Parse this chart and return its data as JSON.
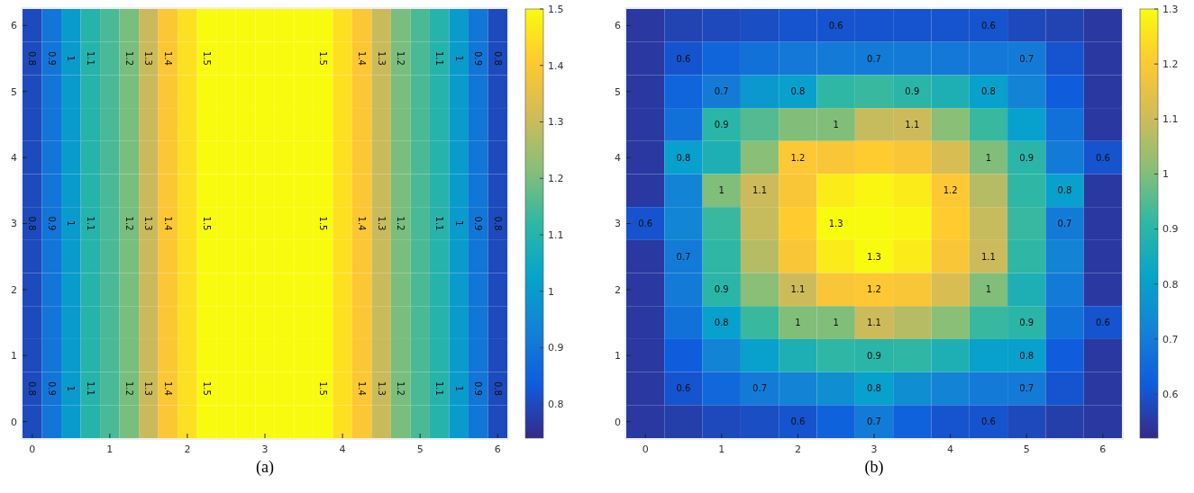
{
  "chart_data": [
    {
      "type": "heatmap",
      "categories": [
        "0",
        null,
        null,
        null,
        "1",
        null,
        null,
        null,
        "2",
        null,
        null,
        null,
        "3",
        null,
        null,
        null,
        "4",
        null,
        null,
        null,
        "5",
        null,
        null,
        null,
        "6"
      ],
      "y_categories": [
        "6",
        null,
        "5",
        null,
        "4",
        null,
        "3",
        null,
        "2",
        null,
        "1",
        null,
        "0"
      ],
      "cells": [
        [
          0.8,
          0.9,
          1,
          1.1,
          1.15,
          1.2,
          1.3,
          1.4,
          1.45,
          1.5,
          1.5,
          1.5,
          1.5,
          1.5,
          1.5,
          1.5,
          1.45,
          1.4,
          1.3,
          1.2,
          1.15,
          1.1,
          1,
          0.9,
          0.8
        ],
        [
          0.8,
          0.9,
          1,
          1.1,
          1.15,
          1.2,
          1.3,
          1.4,
          1.45,
          1.5,
          1.5,
          1.5,
          1.5,
          1.5,
          1.5,
          1.5,
          1.45,
          1.4,
          1.3,
          1.2,
          1.15,
          1.1,
          1,
          0.9,
          0.8
        ],
        [
          0.8,
          0.9,
          1,
          1.1,
          1.15,
          1.2,
          1.3,
          1.4,
          1.45,
          1.5,
          1.5,
          1.5,
          1.5,
          1.5,
          1.5,
          1.5,
          1.45,
          1.4,
          1.3,
          1.2,
          1.15,
          1.1,
          1,
          0.9,
          0.8
        ],
        [
          0.8,
          0.9,
          1,
          1.1,
          1.15,
          1.2,
          1.3,
          1.4,
          1.45,
          1.5,
          1.5,
          1.5,
          1.5,
          1.5,
          1.5,
          1.5,
          1.45,
          1.4,
          1.3,
          1.2,
          1.15,
          1.1,
          1,
          0.9,
          0.8
        ],
        [
          0.8,
          0.9,
          1,
          1.1,
          1.15,
          1.2,
          1.3,
          1.4,
          1.45,
          1.5,
          1.5,
          1.5,
          1.5,
          1.5,
          1.5,
          1.5,
          1.45,
          1.4,
          1.3,
          1.2,
          1.15,
          1.1,
          1,
          0.9,
          0.8
        ],
        [
          0.8,
          0.9,
          1,
          1.1,
          1.15,
          1.2,
          1.3,
          1.4,
          1.45,
          1.5,
          1.5,
          1.5,
          1.5,
          1.5,
          1.5,
          1.5,
          1.45,
          1.4,
          1.3,
          1.2,
          1.15,
          1.1,
          1,
          0.9,
          0.8
        ],
        [
          0.8,
          0.9,
          1,
          1.1,
          1.15,
          1.2,
          1.3,
          1.4,
          1.45,
          1.5,
          1.5,
          1.5,
          1.5,
          1.5,
          1.5,
          1.5,
          1.45,
          1.4,
          1.3,
          1.2,
          1.15,
          1.1,
          1,
          0.9,
          0.8
        ],
        [
          0.8,
          0.9,
          1,
          1.1,
          1.15,
          1.2,
          1.3,
          1.4,
          1.45,
          1.5,
          1.5,
          1.5,
          1.5,
          1.5,
          1.5,
          1.5,
          1.45,
          1.4,
          1.3,
          1.2,
          1.15,
          1.1,
          1,
          0.9,
          0.8
        ],
        [
          0.8,
          0.9,
          1,
          1.1,
          1.15,
          1.2,
          1.3,
          1.4,
          1.45,
          1.5,
          1.5,
          1.5,
          1.5,
          1.5,
          1.5,
          1.5,
          1.45,
          1.4,
          1.3,
          1.2,
          1.15,
          1.1,
          1,
          0.9,
          0.8
        ],
        [
          0.8,
          0.9,
          1,
          1.1,
          1.15,
          1.2,
          1.3,
          1.4,
          1.45,
          1.5,
          1.5,
          1.5,
          1.5,
          1.5,
          1.5,
          1.5,
          1.45,
          1.4,
          1.3,
          1.2,
          1.15,
          1.1,
          1,
          0.9,
          0.8
        ],
        [
          0.8,
          0.9,
          1,
          1.1,
          1.15,
          1.2,
          1.3,
          1.4,
          1.45,
          1.5,
          1.5,
          1.5,
          1.5,
          1.5,
          1.5,
          1.5,
          1.45,
          1.4,
          1.3,
          1.2,
          1.15,
          1.1,
          1,
          0.9,
          0.8
        ],
        [
          0.8,
          0.9,
          1,
          1.1,
          1.15,
          1.2,
          1.3,
          1.4,
          1.45,
          1.5,
          1.5,
          1.5,
          1.5,
          1.5,
          1.5,
          1.5,
          1.45,
          1.4,
          1.3,
          1.2,
          1.15,
          1.1,
          1,
          0.9,
          0.8
        ],
        [
          0.8,
          0.9,
          1,
          1.1,
          1.15,
          1.2,
          1.3,
          1.4,
          1.45,
          1.5,
          1.5,
          1.5,
          1.5,
          1.5,
          1.5,
          1.5,
          1.45,
          1.4,
          1.3,
          1.2,
          1.15,
          1.1,
          1,
          0.9,
          0.8
        ]
      ],
      "cell_labels": [
        [
          null,
          null,
          null,
          null,
          null,
          null,
          null,
          null,
          null,
          null,
          null,
          null,
          null,
          null,
          null,
          null,
          null,
          null,
          null,
          null,
          null,
          null,
          null,
          null,
          null
        ],
        [
          "0.8",
          "0.9",
          "1",
          "1.1",
          null,
          "1.2",
          "1.3",
          "1.4",
          null,
          "1.5",
          null,
          null,
          null,
          null,
          null,
          "1.5",
          null,
          "1.4",
          "1.3",
          "1.2",
          null,
          "1.1",
          "1",
          "0.9",
          "0.8"
        ],
        [
          null,
          null,
          null,
          null,
          null,
          null,
          null,
          null,
          null,
          null,
          null,
          null,
          null,
          null,
          null,
          null,
          null,
          null,
          null,
          null,
          null,
          null,
          null,
          null,
          null
        ],
        [
          null,
          null,
          null,
          null,
          null,
          null,
          null,
          null,
          null,
          null,
          null,
          null,
          null,
          null,
          null,
          null,
          null,
          null,
          null,
          null,
          null,
          null,
          null,
          null,
          null
        ],
        [
          null,
          null,
          null,
          null,
          null,
          null,
          null,
          null,
          null,
          null,
          null,
          null,
          null,
          null,
          null,
          null,
          null,
          null,
          null,
          null,
          null,
          null,
          null,
          null,
          null
        ],
        [
          null,
          null,
          null,
          null,
          null,
          null,
          null,
          null,
          null,
          null,
          null,
          null,
          null,
          null,
          null,
          null,
          null,
          null,
          null,
          null,
          null,
          null,
          null,
          null,
          null
        ],
        [
          "0.8",
          "0.9",
          "1",
          "1.1",
          null,
          "1.2",
          "1.3",
          "1.4",
          null,
          "1.5",
          null,
          null,
          null,
          null,
          null,
          "1.5",
          null,
          "1.4",
          "1.3",
          "1.2",
          null,
          "1.1",
          "1",
          "0.9",
          "0.8"
        ],
        [
          null,
          null,
          null,
          null,
          null,
          null,
          null,
          null,
          null,
          null,
          null,
          null,
          null,
          null,
          null,
          null,
          null,
          null,
          null,
          null,
          null,
          null,
          null,
          null,
          null
        ],
        [
          null,
          null,
          null,
          null,
          null,
          null,
          null,
          null,
          null,
          null,
          null,
          null,
          null,
          null,
          null,
          null,
          null,
          null,
          null,
          null,
          null,
          null,
          null,
          null,
          null
        ],
        [
          null,
          null,
          null,
          null,
          null,
          null,
          null,
          null,
          null,
          null,
          null,
          null,
          null,
          null,
          null,
          null,
          null,
          null,
          null,
          null,
          null,
          null,
          null,
          null,
          null
        ],
        [
          null,
          null,
          null,
          null,
          null,
          null,
          null,
          null,
          null,
          null,
          null,
          null,
          null,
          null,
          null,
          null,
          null,
          null,
          null,
          null,
          null,
          null,
          null,
          null,
          null
        ],
        [
          "0.8",
          "0.9",
          "1",
          "1.1",
          null,
          "1.2",
          "1.3",
          "1.4",
          null,
          "1.5",
          null,
          null,
          null,
          null,
          null,
          "1.5",
          null,
          "1.4",
          "1.3",
          "1.2",
          null,
          "1.1",
          "1",
          "0.9",
          "0.8"
        ],
        [
          null,
          null,
          null,
          null,
          null,
          null,
          null,
          null,
          null,
          null,
          null,
          null,
          null,
          null,
          null,
          null,
          null,
          null,
          null,
          null,
          null,
          null,
          null,
          null,
          null
        ]
      ],
      "clim": [
        0.74,
        1.5
      ],
      "cticks": [
        0.8,
        0.9,
        1,
        1.1,
        1.2,
        1.3,
        1.4,
        1.5
      ],
      "annotations": [
        "(a)"
      ]
    },
    {
      "type": "heatmap",
      "categories": [
        "0",
        null,
        "1",
        null,
        "2",
        null,
        "3",
        null,
        "4",
        null,
        "5",
        null,
        "6"
      ],
      "y_categories": [
        "6",
        null,
        "5",
        null,
        "4",
        null,
        "3",
        null,
        "2",
        null,
        "1",
        null,
        "0"
      ],
      "cells": [
        [
          0.55,
          0.57,
          0.58,
          0.59,
          0.6,
          0.6,
          0.6,
          0.6,
          0.6,
          0.6,
          0.58,
          0.57,
          0.55
        ],
        [
          0.55,
          0.6,
          0.64,
          0.67,
          0.69,
          0.7,
          0.7,
          0.7,
          0.69,
          0.69,
          0.7,
          0.6,
          0.55
        ],
        [
          0.55,
          0.64,
          0.7,
          0.78,
          0.8,
          0.91,
          0.92,
          0.9,
          0.87,
          0.8,
          0.72,
          0.62,
          0.55
        ],
        [
          0.55,
          0.67,
          0.9,
          0.95,
          1.0,
          1,
          1.09,
          1.1,
          1.01,
          0.92,
          0.8,
          0.67,
          0.55
        ],
        [
          0.55,
          0.8,
          0.87,
          1.01,
          1.2,
          1.19,
          1.21,
          1.19,
          1.12,
          1,
          0.9,
          0.7,
          0.6
        ],
        [
          0.55,
          0.72,
          1,
          1.1,
          1.19,
          1.27,
          1.29,
          1.27,
          1.2,
          1.07,
          0.91,
          0.8,
          0.55
        ],
        [
          0.6,
          0.73,
          0.92,
          1.09,
          1.21,
          1.3,
          1.3,
          1.29,
          1.21,
          1.09,
          0.92,
          0.7,
          0.55
        ],
        [
          0.55,
          0.7,
          0.91,
          1.07,
          1.19,
          1.27,
          1.3,
          1.27,
          1.19,
          1.1,
          0.91,
          0.72,
          0.55
        ],
        [
          0.55,
          0.7,
          0.9,
          1.01,
          1.1,
          1.19,
          1.2,
          1.19,
          1.12,
          1,
          0.87,
          0.7,
          0.55
        ],
        [
          0.55,
          0.67,
          0.8,
          0.92,
          1,
          1,
          1.1,
          1.07,
          1.01,
          0.92,
          0.9,
          0.67,
          0.6
        ],
        [
          0.55,
          0.62,
          0.72,
          0.8,
          0.87,
          0.91,
          0.9,
          0.91,
          0.87,
          0.8,
          0.8,
          0.62,
          0.55
        ],
        [
          0.55,
          0.6,
          0.65,
          0.7,
          0.72,
          0.75,
          0.8,
          0.75,
          0.72,
          0.7,
          0.7,
          0.6,
          0.55
        ],
        [
          0.55,
          0.56,
          0.58,
          0.59,
          0.6,
          0.63,
          0.7,
          0.63,
          0.6,
          0.6,
          0.58,
          0.56,
          0.55
        ]
      ],
      "cell_labels": [
        [
          null,
          null,
          null,
          null,
          null,
          "0.6",
          null,
          null,
          null,
          "0.6",
          null,
          null,
          null
        ],
        [
          null,
          "0.6",
          null,
          null,
          null,
          null,
          "0.7",
          null,
          null,
          null,
          "0.7",
          null,
          null
        ],
        [
          null,
          null,
          "0.7",
          null,
          "0.8",
          null,
          null,
          "0.9",
          null,
          "0.8",
          null,
          null,
          null
        ],
        [
          null,
          null,
          "0.9",
          null,
          null,
          "1",
          null,
          "1.1",
          null,
          null,
          null,
          null,
          null
        ],
        [
          null,
          "0.8",
          null,
          null,
          "1.2",
          null,
          null,
          null,
          null,
          "1",
          "0.9",
          null,
          "0.6"
        ],
        [
          null,
          null,
          "1",
          "1.1",
          null,
          null,
          null,
          null,
          "1.2",
          null,
          null,
          "0.8",
          null
        ],
        [
          "0.6",
          null,
          null,
          null,
          null,
          "1.3",
          null,
          null,
          null,
          null,
          null,
          "0.7",
          null
        ],
        [
          null,
          "0.7",
          null,
          null,
          null,
          null,
          "1.3",
          null,
          null,
          "1.1",
          null,
          null,
          null
        ],
        [
          null,
          null,
          "0.9",
          null,
          "1.1",
          null,
          "1.2",
          null,
          null,
          "1",
          null,
          null,
          null
        ],
        [
          null,
          null,
          "0.8",
          null,
          "1",
          "1",
          "1.1",
          null,
          null,
          null,
          "0.9",
          null,
          "0.6"
        ],
        [
          null,
          null,
          null,
          null,
          null,
          null,
          "0.9",
          null,
          null,
          null,
          "0.8",
          null,
          null
        ],
        [
          null,
          "0.6",
          null,
          "0.7",
          null,
          null,
          "0.8",
          null,
          null,
          null,
          "0.7",
          null,
          null
        ],
        [
          null,
          null,
          null,
          null,
          "0.6",
          null,
          "0.7",
          null,
          null,
          "0.6",
          null,
          null,
          null
        ]
      ],
      "clim": [
        0.52,
        1.3
      ],
      "cticks": [
        0.6,
        0.7,
        0.8,
        0.9,
        1,
        1.1,
        1.2,
        1.3
      ],
      "annotations": [
        "(b)"
      ]
    }
  ]
}
